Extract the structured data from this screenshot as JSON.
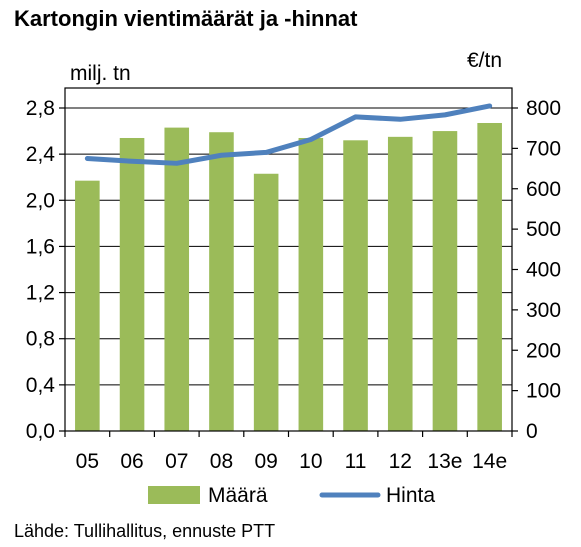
{
  "chart_data": {
    "type": "bar",
    "title": "Kartongin vientimäärät ja -hinnat",
    "y_left_unit": "milj. tn",
    "y_right_unit": "€/tn",
    "categories": [
      "05",
      "06",
      "07",
      "08",
      "09",
      "10",
      "11",
      "12",
      "13e",
      "14e"
    ],
    "series": [
      {
        "name": "Määrä",
        "kind": "bar",
        "axis": "left",
        "color": "#9bbb59",
        "values": [
          2.17,
          2.54,
          2.63,
          2.59,
          2.23,
          2.54,
          2.52,
          2.55,
          2.6,
          2.67
        ]
      },
      {
        "name": "Hinta",
        "kind": "line",
        "axis": "right",
        "color": "#4f81bd",
        "values": [
          675,
          668,
          663,
          683,
          690,
          722,
          778,
          772,
          783,
          805
        ]
      }
    ],
    "y_left": {
      "min": 0,
      "max": 2.8,
      "ticks": [
        0,
        0.4,
        0.8,
        1.2,
        1.6,
        2.0,
        2.4,
        2.8
      ],
      "tick_labels": [
        "0,0",
        "0,4",
        "0,8",
        "1,2",
        "1,6",
        "2,0",
        "2,4",
        "2,8"
      ]
    },
    "y_right": {
      "min": 0,
      "max": 800,
      "ticks": [
        0,
        100,
        200,
        300,
        400,
        500,
        600,
        700,
        800
      ],
      "tick_labels": [
        "0",
        "100",
        "200",
        "300",
        "400",
        "500",
        "600",
        "700",
        "800"
      ]
    },
    "grid": "horizontal",
    "legend_position": "bottom",
    "source_note": "Lähde: Tullihallitus, ennuste PTT"
  }
}
